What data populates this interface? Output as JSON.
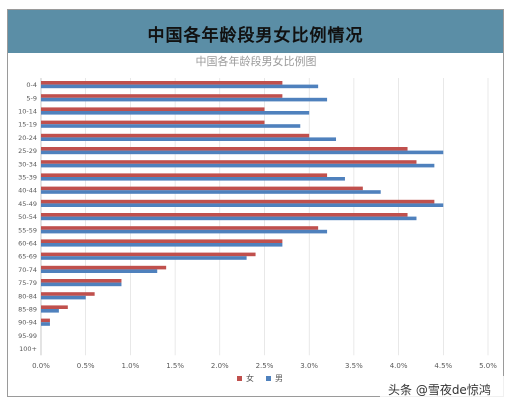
{
  "header": {
    "title": "中国各年龄段男女比例情况"
  },
  "watermark": "头条 @雪夜de惊鸿",
  "colors": {
    "female": "#c0504d",
    "male": "#4f81bd",
    "title_band": "#5b8ea6"
  },
  "chart_data": {
    "type": "bar",
    "orientation": "horizontal",
    "title": "中国各年龄段男女比例图",
    "categories": [
      "0-4",
      "5-9",
      "10-14",
      "15-19",
      "20-24",
      "25-29",
      "30-34",
      "35-39",
      "40-44",
      "45-49",
      "50-54",
      "55-59",
      "60-64",
      "65-69",
      "70-74",
      "75-79",
      "80-84",
      "85-89",
      "90-94",
      "95-99",
      "100+"
    ],
    "series": [
      {
        "name": "女",
        "values": [
          2.7,
          2.7,
          2.5,
          2.5,
          3.0,
          4.1,
          4.2,
          3.2,
          3.6,
          4.4,
          4.1,
          3.1,
          2.7,
          2.4,
          1.4,
          0.9,
          0.6,
          0.3,
          0.1,
          0.0,
          0.0
        ]
      },
      {
        "name": "男",
        "values": [
          3.1,
          3.2,
          3.0,
          2.9,
          3.3,
          4.5,
          4.4,
          3.4,
          3.8,
          4.5,
          4.2,
          3.2,
          2.7,
          2.3,
          1.3,
          0.9,
          0.5,
          0.2,
          0.1,
          0.0,
          0.0
        ]
      }
    ],
    "xlim": [
      0,
      5.0
    ],
    "xticks": [
      "0.0%",
      "0.5%",
      "1.0%",
      "1.5%",
      "2.0%",
      "2.5%",
      "3.0%",
      "3.5%",
      "4.0%",
      "4.5%",
      "5.0%"
    ],
    "grid": true,
    "legend": "bottom"
  }
}
